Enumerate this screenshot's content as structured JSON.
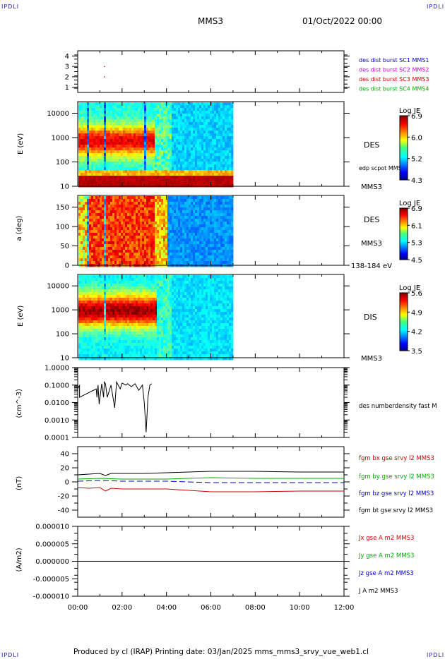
{
  "header": {
    "corner_tl": "IPDLI",
    "corner_tr": "IPDLI",
    "corner_bl": "IPDLI",
    "corner_br": "IPDLI",
    "mission": "MMS3",
    "datetime": "01/Oct/2022 00:00"
  },
  "footer": {
    "produced": "Produced by cl (IRAP)   Printing date: 03/Jan/2025   mms_mms3_srvy_vue_web1.cl"
  },
  "colors": {
    "blue": "#0000cc",
    "magenta": "#cc00cc",
    "red": "#cc0000",
    "green": "#00aa00",
    "black": "#000000"
  },
  "chart_data": [
    {
      "type": "scatter",
      "yticks": [
        "4",
        "3",
        "2",
        "1"
      ],
      "ylim": [
        0.5,
        4.5
      ],
      "legend": [
        {
          "label": "des dist burst SC1 MMS1",
          "color": "#0000cc"
        },
        {
          "label": "des dist burst SC2 MMS2",
          "color": "#cc00cc"
        },
        {
          "label": "des dist burst SC3 MMS3",
          "color": "#cc0000"
        },
        {
          "label": "des dist burst SC4 MMS4",
          "color": "#00aa00"
        }
      ],
      "points": [
        {
          "x": "01:12",
          "y": 3
        },
        {
          "x": "01:12",
          "y": 2
        }
      ]
    },
    {
      "type": "heatmap",
      "ylabel": "E (eV)",
      "yscale": "log",
      "ylim": [
        10,
        30000
      ],
      "yticks": [
        "10000",
        "1000",
        "100",
        "10"
      ],
      "xlim": [
        "00:00",
        "06:55"
      ],
      "labels": [
        "DES",
        "edp scpot MMS3",
        "MMS3"
      ],
      "colorbar": {
        "title": "Log JE",
        "ticks": [
          "6.9",
          "6.0",
          "5.2",
          "4.3"
        ],
        "range": [
          4.3,
          6.9
        ]
      }
    },
    {
      "type": "heatmap",
      "ylabel": "a (deg)",
      "ylim": [
        0,
        180
      ],
      "yticks": [
        "150",
        "100",
        "50",
        "0"
      ],
      "xlim": [
        "00:00",
        "06:55"
      ],
      "labels": [
        "DES",
        "MMS3",
        "138-184 eV"
      ],
      "colorbar": {
        "title": "Log JE",
        "ticks": [
          "6.9",
          "6.1",
          "5.3",
          "4.5"
        ],
        "range": [
          4.5,
          6.9
        ]
      }
    },
    {
      "type": "heatmap",
      "ylabel": "E (eV)",
      "yscale": "log",
      "ylim": [
        10,
        30000
      ],
      "yticks": [
        "10000",
        "1000",
        "100",
        "10"
      ],
      "xlim": [
        "00:00",
        "06:55"
      ],
      "labels": [
        "DIS",
        "MMS3"
      ],
      "colorbar": {
        "title": "Log JE",
        "ticks": [
          "5.6",
          "4.9",
          "4.2",
          "3.5"
        ],
        "range": [
          3.5,
          5.6
        ]
      }
    },
    {
      "type": "line",
      "ylabel": "(cm^-3)",
      "yscale": "log",
      "ylim": [
        0.0001,
        1.0
      ],
      "yticks": [
        "1.0000",
        "0.1000",
        "0.0100",
        "0.0010",
        "0.0001"
      ],
      "series": [
        {
          "name": "des numberdensity fast M",
          "color": "#000000",
          "x": [
            "00:00",
            "00:05",
            "00:05",
            "00:10",
            "00:50",
            "00:52",
            "00:55",
            "00:58",
            "01:05",
            "01:10",
            "01:12",
            "01:15",
            "01:20",
            "01:30",
            "01:40",
            "01:45",
            "01:55",
            "02:00",
            "02:10",
            "02:15",
            "02:25",
            "02:35",
            "02:45",
            "02:55",
            "03:00",
            "03:05",
            "03:10",
            "03:15",
            "03:20"
          ],
          "values": [
            0.06,
            0.1,
            0.02,
            0.0,
            0.06,
            0.02,
            0.1,
            0.008,
            0.12,
            0.02,
            0.15,
            0.12,
            0.02,
            0.1,
            0.005,
            0.15,
            0.06,
            0.13,
            0.1,
            0.12,
            0.08,
            0.12,
            0.05,
            0.1,
            0.01,
            0.0002,
            0.02,
            0.1,
            0.12
          ]
        }
      ]
    },
    {
      "type": "line",
      "ylabel": "(nT)",
      "ylim": [
        -50,
        50
      ],
      "yticks": [
        "40",
        "20",
        "0",
        "-20",
        "-40"
      ],
      "series": [
        {
          "name": "fgm bx gse srvy l2 MMS3",
          "color": "#cc0000",
          "x": [
            "00:00",
            "00:30",
            "01:00",
            "01:15",
            "01:30",
            "02:00",
            "03:00",
            "04:00",
            "06:00",
            "08:00",
            "10:00",
            "12:00"
          ],
          "values": [
            -8,
            -9,
            -8,
            -13,
            -9,
            -10,
            -10,
            -10,
            -14,
            -14,
            -13,
            -13
          ]
        },
        {
          "name": "fgm by gse srvy l2 MMS3",
          "color": "#00aa00",
          "x": [
            "00:00",
            "01:00",
            "02:00",
            "04:00",
            "06:00",
            "08:00",
            "10:00",
            "12:00"
          ],
          "values": [
            4,
            5,
            4,
            4,
            6,
            5,
            5,
            5
          ]
        },
        {
          "name": "fgm bz gse srvy l2 MMS3",
          "color": "#0000cc",
          "x": [
            "00:00",
            "01:00",
            "02:00",
            "04:00",
            "06:00",
            "08:00",
            "10:00",
            "12:00"
          ],
          "values": [
            1,
            2,
            1,
            1,
            -1,
            -1,
            -1,
            -1
          ]
        },
        {
          "name": "fgm bt gse srvy l2 MMS3",
          "color": "#000000",
          "x": [
            "00:00",
            "00:30",
            "01:00",
            "01:15",
            "01:30",
            "02:00",
            "03:00",
            "04:00",
            "06:00",
            "08:00",
            "10:00",
            "12:00"
          ],
          "values": [
            10,
            11,
            12,
            9,
            12,
            12,
            12,
            13,
            15,
            15,
            14,
            14
          ]
        }
      ]
    },
    {
      "type": "line",
      "ylabel": "(A/m2)",
      "ylim": [
        -1e-05,
        1e-05
      ],
      "yticks": [
        "0.000010",
        "0.000005",
        "0.000000",
        "-0.000005",
        "-0.000010"
      ],
      "xticks": [
        "00:00",
        "02:00",
        "04:00",
        "06:00",
        "08:00",
        "10:00",
        "12:00"
      ],
      "series": [
        {
          "name": "Jx gse A m2 MMS3",
          "color": "#cc0000",
          "x": [],
          "values": []
        },
        {
          "name": "Jy gse A m2 MMS3",
          "color": "#00aa00",
          "x": [],
          "values": []
        },
        {
          "name": "Jz gse A m2 MMS3",
          "color": "#0000cc",
          "x": [],
          "values": []
        },
        {
          "name": "J A m2 MMS3",
          "color": "#000000",
          "x": [
            "00:00",
            "12:00"
          ],
          "values": [
            0,
            0
          ]
        }
      ]
    }
  ]
}
